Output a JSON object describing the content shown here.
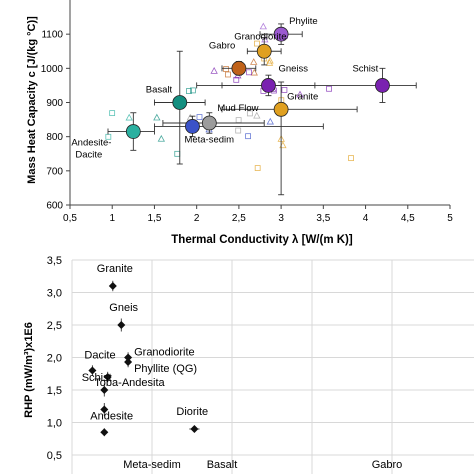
{
  "chart_data": [
    {
      "type": "scatter",
      "title": "",
      "xlabel": "Thermal Conductivity λ [W/(m K)]",
      "ylabel": "Mass Heat Capacity c [J/(kg °C)]",
      "xlim": [
        0.5,
        5
      ],
      "ylim": [
        600,
        1200
      ],
      "x_ticks": [
        0.5,
        1,
        1.5,
        2,
        2.5,
        3,
        3.5,
        4,
        4.5,
        5
      ],
      "x_tick_labels": [
        "0,5",
        "1",
        "1,5",
        "2",
        "2,5",
        "3",
        "3,5",
        "4",
        "4,5",
        "5"
      ],
      "y_ticks": [
        600,
        700,
        800,
        900,
        1000,
        1100
      ],
      "y_tick_labels": [
        "600",
        "700",
        "800",
        "900",
        "1000",
        "1100"
      ],
      "grid": false,
      "series": [
        {
          "name": "Phylite",
          "color": "#9b59d0",
          "x": 3.0,
          "y": 1100,
          "xerr": [
            2.75,
            3.25
          ],
          "yerr": [
            1070,
            1130
          ],
          "label_dx": 8,
          "label_dy": -10
        },
        {
          "name": "Granodiorite",
          "color": "#e0a020",
          "x": 2.8,
          "y": 1050,
          "xerr": [
            2.6,
            3.0
          ],
          "yerr": [
            1010,
            1090
          ],
          "label_dx": -30,
          "label_dy": -12
        },
        {
          "name": "Gabro",
          "color": "#c0621a",
          "x": 2.5,
          "y": 1000,
          "xerr": [
            2.3,
            2.7
          ],
          "yerr": [
            980,
            1020
          ],
          "label_dx": -30,
          "label_dy": -20
        },
        {
          "name": "Gneiss",
          "color": "#7a22b0",
          "x": 2.85,
          "y": 950,
          "xerr": [
            2.3,
            3.4
          ],
          "yerr": [
            920,
            980
          ],
          "label_dx": 10,
          "label_dy": -14
        },
        {
          "name": "Schist",
          "color": "#7a22b0",
          "x": 4.2,
          "y": 950,
          "xerr": [
            2.0,
            4.6
          ],
          "yerr": [
            900,
            1000
          ],
          "label_dx": -30,
          "label_dy": -14
        },
        {
          "name": "Basalt",
          "color": "#138f80",
          "x": 1.8,
          "y": 900,
          "xerr": [
            1.5,
            2.1
          ],
          "yerr": [
            720,
            1050
          ],
          "label_dx": -34,
          "label_dy": -10
        },
        {
          "name": "Granite",
          "color": "#e0a020",
          "x": 3.0,
          "y": 880,
          "xerr": [
            2.3,
            3.9
          ],
          "yerr": [
            630,
            960
          ],
          "label_dx": 6,
          "label_dy": -10
        },
        {
          "name": "Mud Flow",
          "color": "#9c9c9c",
          "x": 2.15,
          "y": 840,
          "xerr": [
            1.6,
            2.8
          ],
          "yerr": [
            810,
            870
          ],
          "label_dx": 8,
          "label_dy": -12
        },
        {
          "name": "Meta-sedim",
          "color": "#3a52c8",
          "x": 1.95,
          "y": 830,
          "xerr": [
            1.5,
            3.5
          ],
          "yerr": [
            800,
            860
          ],
          "label_dx": -8,
          "label_dy": 16
        },
        {
          "name": "Andesite-Dacite",
          "color": "#2ab0a0",
          "x": 1.25,
          "y": 815,
          "xerr": [
            0.95,
            1.5
          ],
          "yerr": [
            760,
            870
          ],
          "label_dx": -62,
          "label_dy": 14
        }
      ]
    },
    {
      "type": "scatter",
      "title": "",
      "xlabel": "",
      "ylabel": "RHP (mW/m³)x1E6",
      "ylim": [
        0.5,
        3.5
      ],
      "y_ticks": [
        0.5,
        1.0,
        1.5,
        2.0,
        2.5,
        3.0,
        3.5
      ],
      "y_tick_labels": [
        "0,5",
        "1,0",
        "1,5",
        "2,0",
        "2,5",
        "3,0",
        "3,5"
      ],
      "grid": true,
      "categories": [
        "Meta-sedim",
        "Basalt",
        "Gabro"
      ],
      "points": [
        {
          "label": "Granite",
          "x": 1.2,
          "y": 3.1,
          "xerr": 0.1,
          "yerr": 0.08
        },
        {
          "label": "Gneis",
          "x": 1.45,
          "y": 2.5,
          "xerr": 0.1,
          "yerr": 0.1
        },
        {
          "label": "Granodiorite",
          "x": 1.65,
          "y": 2.0,
          "xerr": 0.05,
          "yerr": 0.08
        },
        {
          "label": "Phyllite (QG)",
          "x": 1.65,
          "y": 1.93,
          "xerr": 0.05,
          "yerr": 0.08
        },
        {
          "label": "Dacite",
          "x": 0.6,
          "y": 1.8,
          "xerr": 0.1,
          "yerr": 0.08
        },
        {
          "label": "Schist",
          "x": 1.05,
          "y": 1.7,
          "xerr": 0.08,
          "yerr": 0.08
        },
        {
          "label": "Toba-Andesita",
          "x": 0.95,
          "y": 1.5,
          "xerr": 0.08,
          "yerr": 0.1
        },
        {
          "label": "Andesite",
          "x": 0.95,
          "y": 1.2,
          "xerr": 0.08,
          "yerr": 0.1
        },
        {
          "label": "Meta-sedim",
          "x": 0.95,
          "y": 0.85,
          "xerr": 0.1,
          "yerr": 0.06
        },
        {
          "label": "Diorite",
          "x": 3.6,
          "y": 0.9,
          "xerr": 0.15,
          "yerr": 0.05
        }
      ]
    }
  ]
}
